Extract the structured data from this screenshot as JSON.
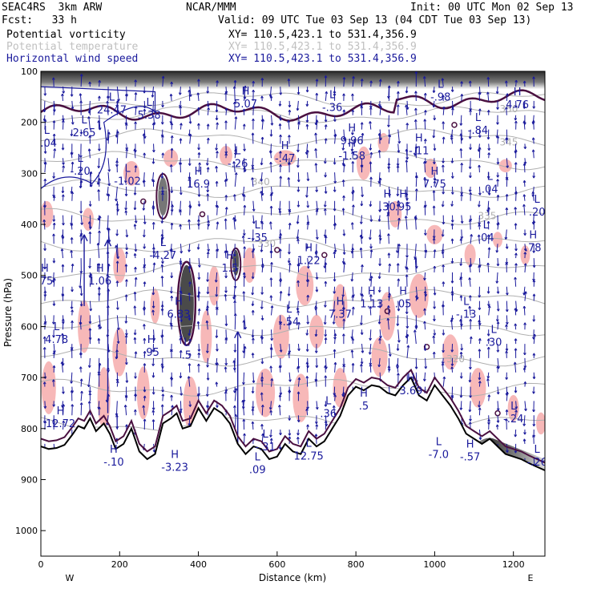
{
  "header": {
    "model": "SEAC4RS  3km ARW",
    "org": "NCAR/MMM",
    "init": "Init: 00 UTC Mon 02 Sep 13",
    "fcst": "Fcst:   33 h",
    "valid": "Valid: 09 UTC Tue 03 Sep 13 (04 CDT Tue 03 Sep 13)",
    "fields": [
      {
        "name": "Potential vorticity",
        "xy": "XY= 110.5,423.1 to 531.4,356.9",
        "color": "#000000"
      },
      {
        "name": "Potential temperature",
        "xy": "XY= 110.5,423.1 to 531.4,356.9",
        "color": "#c0c0c0"
      },
      {
        "name": "Horizontal wind speed",
        "xy": "XY= 110.5,423.1 to 531.4,356.9",
        "color": "#1a1a9c"
      }
    ]
  },
  "chart_data": {
    "type": "cross-section",
    "xlabel": "Distance (km)",
    "ylabel": "Pressure (hPa)",
    "xlim": [
      0,
      1280
    ],
    "ylim": [
      1050,
      100
    ],
    "x_ticks": [
      0,
      200,
      400,
      600,
      800,
      1000,
      1200
    ],
    "y_ticks": [
      100,
      200,
      300,
      400,
      500,
      600,
      700,
      800,
      900,
      1000
    ],
    "x_endpoints": {
      "left": "W",
      "right": "E"
    },
    "colors": {
      "pv": "#4a1040",
      "theta": "#b0b0b0",
      "wind": "#1a1a9c",
      "shade": "#f7b8b8",
      "terrain": "#000000"
    },
    "terrain": [
      [
        0,
        835
      ],
      [
        20,
        840
      ],
      [
        40,
        838
      ],
      [
        60,
        832
      ],
      [
        80,
        812
      ],
      [
        95,
        795
      ],
      [
        110,
        800
      ],
      [
        125,
        780
      ],
      [
        140,
        805
      ],
      [
        160,
        790
      ],
      [
        175,
        810
      ],
      [
        190,
        840
      ],
      [
        210,
        830
      ],
      [
        230,
        800
      ],
      [
        250,
        845
      ],
      [
        270,
        860
      ],
      [
        290,
        850
      ],
      [
        310,
        790
      ],
      [
        330,
        780
      ],
      [
        345,
        770
      ],
      [
        360,
        800
      ],
      [
        380,
        795
      ],
      [
        400,
        760
      ],
      [
        420,
        785
      ],
      [
        440,
        760
      ],
      [
        460,
        770
      ],
      [
        480,
        790
      ],
      [
        500,
        830
      ],
      [
        520,
        850
      ],
      [
        540,
        835
      ],
      [
        560,
        840
      ],
      [
        580,
        860
      ],
      [
        600,
        855
      ],
      [
        620,
        830
      ],
      [
        640,
        845
      ],
      [
        660,
        850
      ],
      [
        680,
        820
      ],
      [
        700,
        835
      ],
      [
        720,
        825
      ],
      [
        740,
        800
      ],
      [
        760,
        775
      ],
      [
        780,
        735
      ],
      [
        800,
        718
      ],
      [
        820,
        725
      ],
      [
        840,
        715
      ],
      [
        860,
        718
      ],
      [
        880,
        730
      ],
      [
        900,
        735
      ],
      [
        920,
        715
      ],
      [
        940,
        700
      ],
      [
        960,
        735
      ],
      [
        980,
        745
      ],
      [
        1000,
        715
      ],
      [
        1020,
        735
      ],
      [
        1040,
        755
      ],
      [
        1060,
        780
      ],
      [
        1080,
        810
      ],
      [
        1100,
        820
      ],
      [
        1120,
        830
      ],
      [
        1140,
        820
      ],
      [
        1160,
        835
      ],
      [
        1180,
        850
      ],
      [
        1200,
        855
      ],
      [
        1220,
        860
      ],
      [
        1240,
        868
      ],
      [
        1260,
        875
      ],
      [
        1280,
        882
      ]
    ],
    "theta_labels": [
      {
        "x": 1165,
        "p": 180,
        "text": "350"
      },
      {
        "x": 1165,
        "p": 245,
        "text": "345"
      },
      {
        "x": 535,
        "p": 323,
        "text": "340"
      },
      {
        "x": 1110,
        "p": 390,
        "text": "335"
      },
      {
        "x": 550,
        "p": 444,
        "text": "330"
      },
      {
        "x": 1030,
        "p": 670,
        "text": "320"
      }
    ],
    "labels": [
      {
        "x": 180,
        "p": 170,
        "type": "L",
        "value": "24.47"
      },
      {
        "x": 275,
        "p": 180,
        "type": "L",
        "value": "5.38"
      },
      {
        "x": 110,
        "p": 215,
        "type": "L",
        "value": "2.65"
      },
      {
        "x": 15,
        "p": 235,
        "type": "L",
        "value": "-.04"
      },
      {
        "x": 520,
        "p": 158,
        "type": "H",
        "value": "5.07"
      },
      {
        "x": 740,
        "p": 165,
        "type": "L",
        "value": "-.36"
      },
      {
        "x": 1015,
        "p": 145,
        "type": "L",
        "value": "-.98"
      },
      {
        "x": 1210,
        "p": 160,
        "type": "H",
        "value": "4.76"
      },
      {
        "x": 1110,
        "p": 210,
        "type": "L",
        "value": "-.84"
      },
      {
        "x": 960,
        "p": 250,
        "type": "H",
        "value": "-.11"
      },
      {
        "x": 790,
        "p": 230,
        "type": "H",
        "value": "9.96"
      },
      {
        "x": 790,
        "p": 260,
        "type": "H",
        "value": "-1.58"
      },
      {
        "x": 620,
        "p": 265,
        "type": "H",
        "value": "-.47"
      },
      {
        "x": 500,
        "p": 275,
        "type": "L",
        "value": "-.26"
      },
      {
        "x": 100,
        "p": 290,
        "type": "L",
        "value": "-.20"
      },
      {
        "x": 220,
        "p": 310,
        "type": "L",
        "value": "-1.02"
      },
      {
        "x": 400,
        "p": 315,
        "type": "H",
        "value": "16.9"
      },
      {
        "x": 880,
        "p": 360,
        "type": "H",
        "value": ".30"
      },
      {
        "x": 920,
        "p": 360,
        "type": "H",
        "value": ".95"
      },
      {
        "x": 1000,
        "p": 315,
        "type": "H",
        "value": "7.75"
      },
      {
        "x": 1140,
        "p": 325,
        "type": "L",
        "value": ".04"
      },
      {
        "x": 1260,
        "p": 370,
        "type": "L",
        "value": ".20"
      },
      {
        "x": 1250,
        "p": 440,
        "type": "H",
        "value": ".78"
      },
      {
        "x": 1130,
        "p": 420,
        "type": "L",
        "value": ".04"
      },
      {
        "x": 550,
        "p": 420,
        "type": "L",
        "value": "-.35"
      },
      {
        "x": 310,
        "p": 455,
        "type": "L",
        "value": "-4.27"
      },
      {
        "x": 680,
        "p": 465,
        "type": "H",
        "value": "1.22"
      },
      {
        "x": 480,
        "p": 480,
        "type": "H",
        "value": "1.5"
      },
      {
        "x": 150,
        "p": 505,
        "type": "H",
        "value": "1.06"
      },
      {
        "x": 10,
        "p": 505,
        "type": "H",
        "value": ".75"
      },
      {
        "x": 840,
        "p": 550,
        "type": "H",
        "value": "1.13"
      },
      {
        "x": 920,
        "p": 550,
        "type": "H",
        "value": ".05"
      },
      {
        "x": 1080,
        "p": 570,
        "type": "L",
        "value": "-.13"
      },
      {
        "x": 760,
        "p": 570,
        "type": "H",
        "value": "7.37"
      },
      {
        "x": 350,
        "p": 570,
        "type": "H",
        "value": "6.83"
      },
      {
        "x": 630,
        "p": 585,
        "type": "L",
        "value": "-.54"
      },
      {
        "x": 40,
        "p": 620,
        "type": "L",
        "value": "4.78"
      },
      {
        "x": 1150,
        "p": 625,
        "type": "L",
        "value": ".30"
      },
      {
        "x": 280,
        "p": 645,
        "type": "H",
        "value": ".95"
      },
      {
        "x": 370,
        "p": 650,
        "type": "L",
        "value": ".5"
      },
      {
        "x": 940,
        "p": 720,
        "type": "H",
        "value": "3.69"
      },
      {
        "x": 820,
        "p": 750,
        "type": "H",
        "value": ".5"
      },
      {
        "x": 730,
        "p": 765,
        "type": "L",
        "value": ".36"
      },
      {
        "x": 1200,
        "p": 775,
        "type": "L",
        "value": "-.24"
      },
      {
        "x": 50,
        "p": 785,
        "type": "H",
        "value": "12.72"
      },
      {
        "x": 570,
        "p": 830,
        "type": "L",
        "value": "-.31"
      },
      {
        "x": 680,
        "p": 848,
        "type": "L",
        "value": "12.75"
      },
      {
        "x": 1010,
        "p": 845,
        "type": "L",
        "value": "-7.0"
      },
      {
        "x": 1090,
        "p": 850,
        "type": "H",
        "value": "-.57"
      },
      {
        "x": 1260,
        "p": 860,
        "type": "L",
        "value": "-.26"
      },
      {
        "x": 340,
        "p": 870,
        "type": "H",
        "value": "-3.23"
      },
      {
        "x": 185,
        "p": 860,
        "type": "H",
        "value": "-.10"
      },
      {
        "x": 550,
        "p": 875,
        "type": "L",
        "value": ".09"
      }
    ]
  }
}
